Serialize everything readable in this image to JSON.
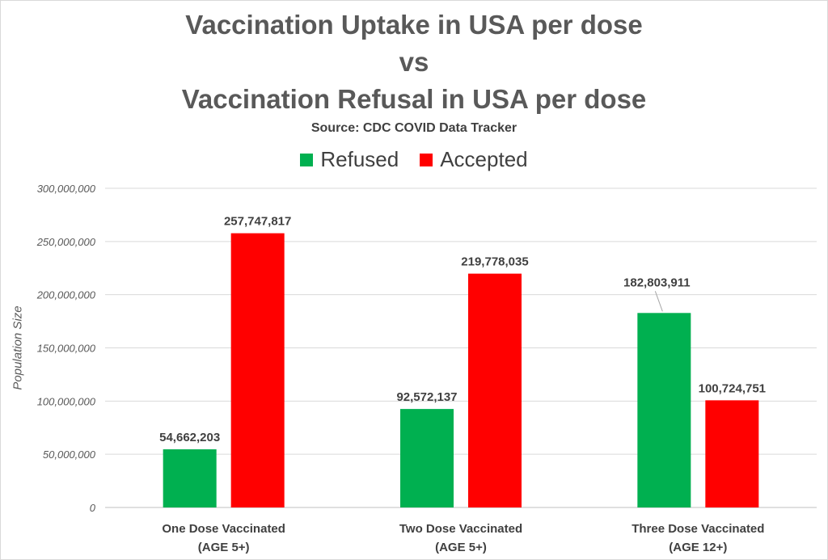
{
  "title_lines": [
    "Vaccination Uptake in USA per dose",
    "vs",
    "Vaccination Refusal in USA per dose"
  ],
  "subtitle": "Source: CDC COVID Data Tracker",
  "colors": {
    "refused": "#00b050",
    "accepted": "#ff0000",
    "grid": "#d9d9d9",
    "text": "#595959"
  },
  "chart_data": {
    "type": "bar",
    "title": "Vaccination Uptake in USA per dose vs Vaccination Refusal in USA per dose",
    "subtitle": "Source: CDC COVID Data Tracker",
    "categories": [
      [
        "One Dose Vaccinated",
        "(AGE 5+)"
      ],
      [
        "Two Dose Vaccinated",
        "(AGE 5+)"
      ],
      [
        "Three Dose Vaccinated",
        "(AGE 12+)"
      ]
    ],
    "series": [
      {
        "name": "Refused",
        "values": [
          54662203,
          92572137,
          182803911
        ],
        "labels": [
          "54,662,203",
          "92,572,137",
          "182,803,911"
        ]
      },
      {
        "name": "Accepted",
        "values": [
          257747817,
          219778035,
          100724751
        ],
        "labels": [
          "257,747,817",
          "219,778,035",
          "100,724,751"
        ]
      }
    ],
    "xlabel": "",
    "ylabel": "Population Size",
    "ylim": [
      0,
      300000000
    ],
    "yticks": [
      0,
      50000000,
      100000000,
      150000000,
      200000000,
      250000000,
      300000000
    ],
    "ytick_labels": [
      "0",
      "50,000,000",
      "100,000,000",
      "150,000,000",
      "200,000,000",
      "250,000,000",
      "300,000,000"
    ],
    "grid": true,
    "legend": "top-center"
  }
}
